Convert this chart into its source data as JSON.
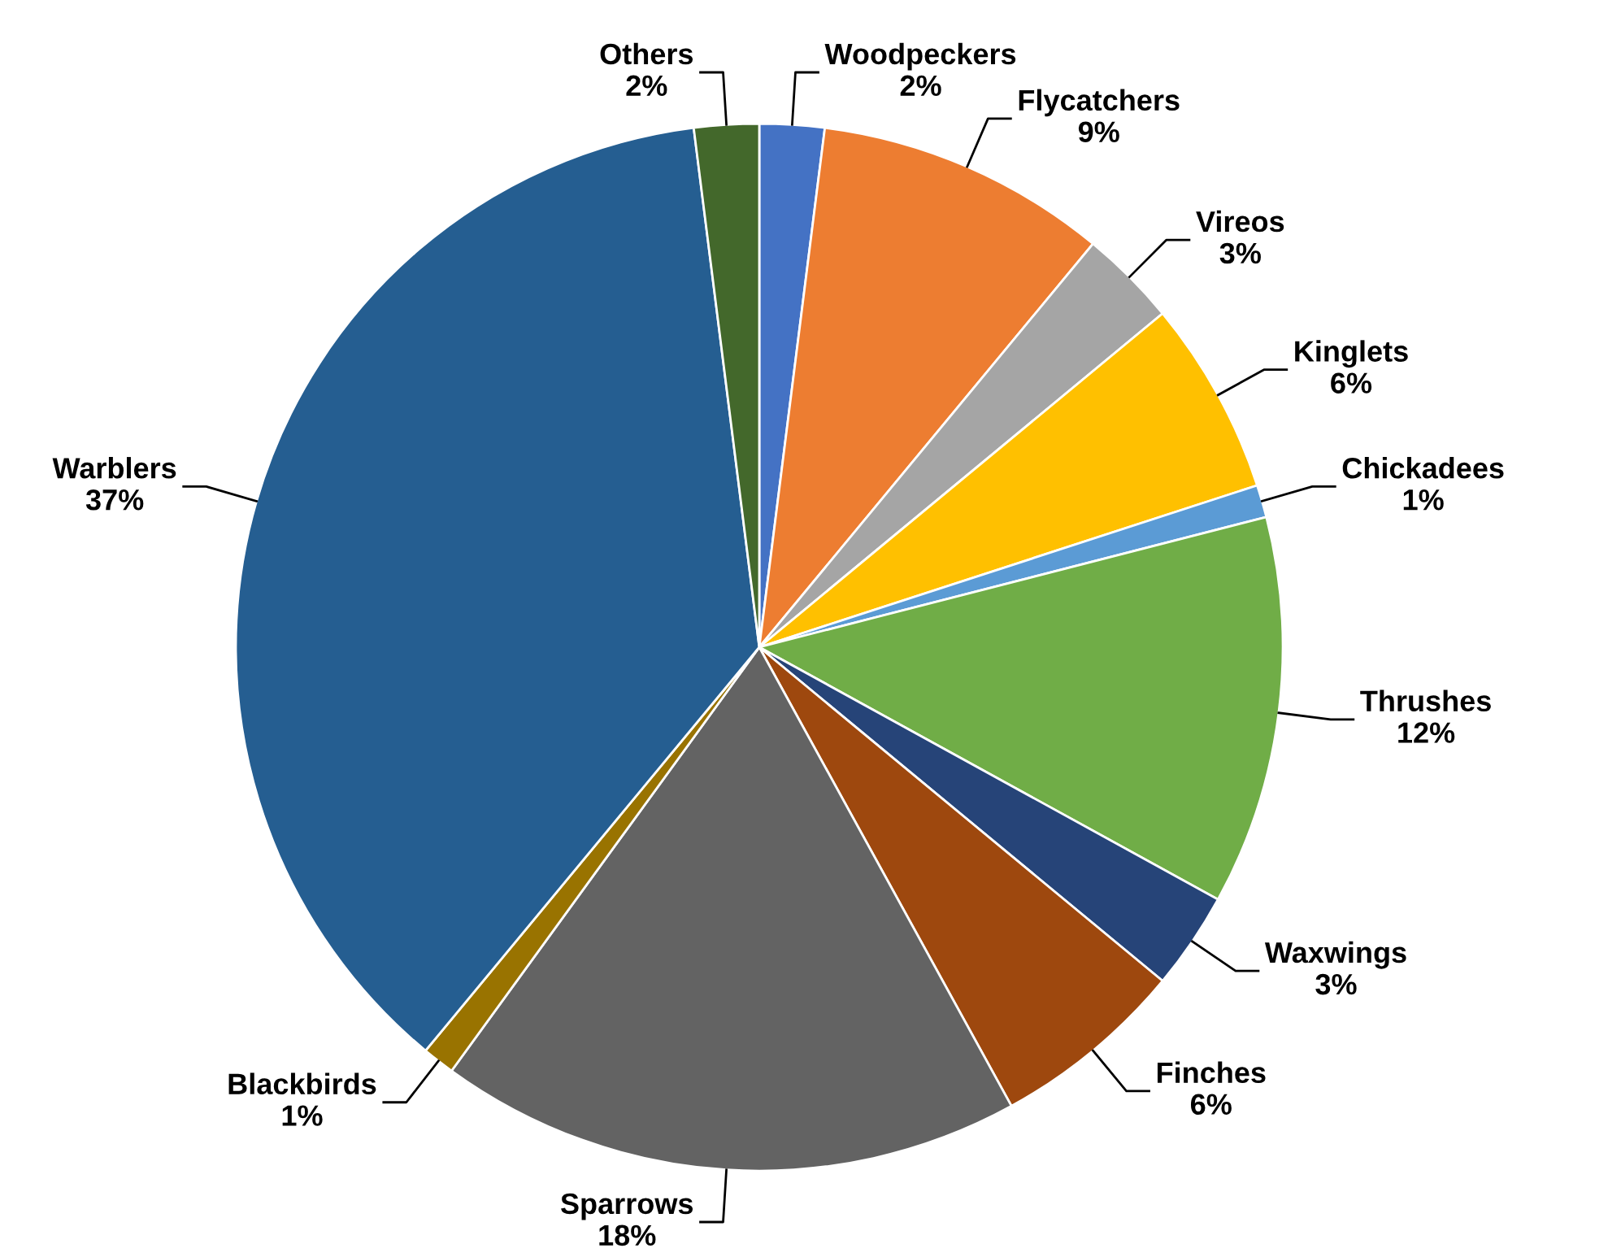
{
  "chart_data": {
    "type": "pie",
    "categories": [
      "Woodpeckers",
      "Flycatchers",
      "Vireos",
      "Kinglets",
      "Chickadees",
      "Thrushes",
      "Waxwings",
      "Finches",
      "Sparrows",
      "Blackbirds",
      "Warblers",
      "Others"
    ],
    "values": [
      2,
      9,
      3,
      6,
      1,
      12,
      3,
      6,
      18,
      1,
      37,
      2
    ],
    "value_labels": [
      "2%",
      "9%",
      "3%",
      "6%",
      "1%",
      "12%",
      "3%",
      "6%",
      "18%",
      "1%",
      "37%",
      "2%"
    ],
    "colors": [
      "#4472c4",
      "#ed7d31",
      "#a5a5a5",
      "#ffc000",
      "#5b9bd5",
      "#70ad47",
      "#264478",
      "#9e480e",
      "#636363",
      "#997300",
      "#255e91",
      "#43682b"
    ],
    "legend": false
  }
}
